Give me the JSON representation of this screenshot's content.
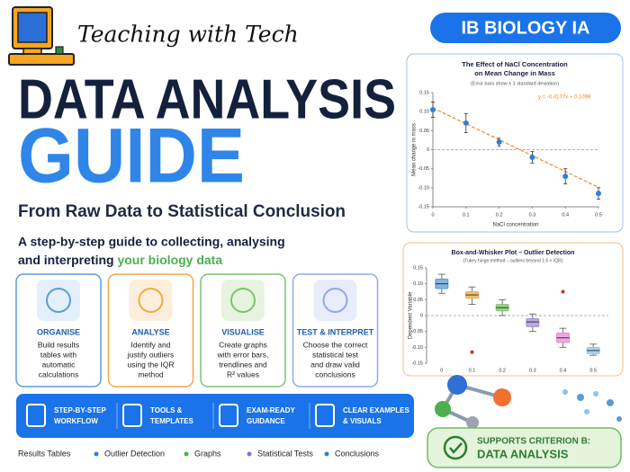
{
  "header": {
    "brand": "Teaching with Tech",
    "title_line1": "DATA ANALYSIS",
    "title_line2": "GUIDE",
    "subtitle": "From Raw Data to Statistical Conclusion",
    "intro_line1": "A step-by-step guide to collecting, analysing",
    "intro_line2_prefix": "and interpreting ",
    "intro_line2_highlight": "your biology data"
  },
  "badge": "IB BIOLOGY IA",
  "cards": [
    {
      "title": "ORGANISE",
      "lines": [
        "Build results",
        "tables with",
        "automatic",
        "calculations"
      ]
    },
    {
      "title": "ANALYSE",
      "lines": [
        "Identify and",
        "justify outliers",
        "using the IQR",
        "method"
      ]
    },
    {
      "title": "VISUALISE",
      "lines": [
        "Create graphs",
        "with error bars,",
        "trendlines and",
        "R² values"
      ]
    },
    {
      "title": "TEST & INTERPRET",
      "lines": [
        "Choose the correct",
        "statistical test",
        "and draw valid",
        "conclusions"
      ]
    }
  ],
  "features": [
    {
      "lines": [
        "STEP-BY-STEP",
        "WORKFLOW"
      ]
    },
    {
      "lines": [
        "TOOLS &",
        "TEMPLATES"
      ]
    },
    {
      "lines": [
        "EXAM-READY",
        "GUIDANCE"
      ]
    },
    {
      "lines": [
        "CLEAR EXAMPLES",
        "& VISUALS"
      ]
    }
  ],
  "footer_items": [
    "Results Tables",
    "Outlier Detection",
    "Graphs",
    "Statistical Tests",
    "Conclusions"
  ],
  "criterion": {
    "line1": "SUPPORTS CRITERION B:",
    "line2": "DATA ANALYSIS"
  },
  "chart_data": [
    {
      "type": "scatter",
      "title_line1": "The Effect of NaCl Concentration",
      "title_line2": "on Mean Change in Mass",
      "subtitle": "(Error bars show ± 1 standard deviation)",
      "xlabel": "NaCl concentration",
      "ylabel": "Mean change in mass",
      "x": [
        0,
        0.1,
        0.2,
        0.3,
        0.4,
        0.5
      ],
      "values": [
        0.105,
        0.07,
        0.02,
        -0.02,
        -0.07,
        -0.115
      ],
      "errors": [
        0.02,
        0.025,
        0.01,
        0.015,
        0.02,
        0.015
      ],
      "color": "#2f7fd8",
      "trendline": {
        "label": "y = -0.4177x + 0.1098",
        "slope": -0.4177,
        "intercept": 0.1098,
        "color": "#f08a24"
      },
      "xlim": [
        0,
        0.5
      ],
      "xticks": [
        0,
        0.1,
        0.2,
        0.3,
        0.4,
        0.5
      ],
      "ylim": [
        -0.15,
        0.15
      ],
      "yticks": [
        0.15,
        {
          "value": 0.1,
          "label": "0.10"
        },
        0.05,
        0,
        -0.05,
        {
          "value": -0.1,
          "label": "-0.10"
        },
        -0.15
      ],
      "zero_line": true
    },
    {
      "type": "box",
      "title": "Box-and-Whisker Plot – Outlier Detection",
      "subtitle": "(Tukey hinge method – outliers beyond 1.5 × IQR)",
      "ylabel": "Dependent Variable",
      "categories": [
        "0",
        "0.1",
        "0.2",
        "0.3",
        "0.4",
        "0.5"
      ],
      "boxes": [
        {
          "min": 0.07,
          "q1": 0.085,
          "median": 0.1,
          "q3": 0.115,
          "max": 0.13,
          "color": "#5b9bd5"
        },
        {
          "min": 0.035,
          "q1": 0.055,
          "median": 0.065,
          "q3": 0.075,
          "max": 0.09,
          "color": "#f4a942"
        },
        {
          "min": 0,
          "q1": 0.015,
          "median": 0.025,
          "q3": 0.035,
          "max": 0.05,
          "color": "#7cc36b"
        },
        {
          "min": -0.05,
          "q1": -0.035,
          "median": -0.02,
          "q3": -0.01,
          "max": 0.005,
          "color": "#a38fd6"
        },
        {
          "min": -0.1,
          "q1": -0.085,
          "median": -0.07,
          "q3": -0.055,
          "max": -0.04,
          "color": "#e58bd0"
        },
        {
          "min": -0.125,
          "q1": -0.12,
          "median": -0.11,
          "q3": -0.1,
          "max": -0.09,
          "color": "#8ec3ea"
        }
      ],
      "outliers": [
        [],
        [
          -0.115
        ],
        [],
        [],
        [
          0.075
        ],
        []
      ],
      "outlier_color": "#d62d20",
      "ylim": [
        -0.15,
        0.15
      ],
      "yticks": [
        0.15,
        {
          "value": 0.1,
          "label": "0.10"
        },
        0.05,
        0,
        -0.05,
        {
          "value": -0.1,
          "label": "-0.10"
        },
        -0.15
      ],
      "zero_line": true
    }
  ]
}
